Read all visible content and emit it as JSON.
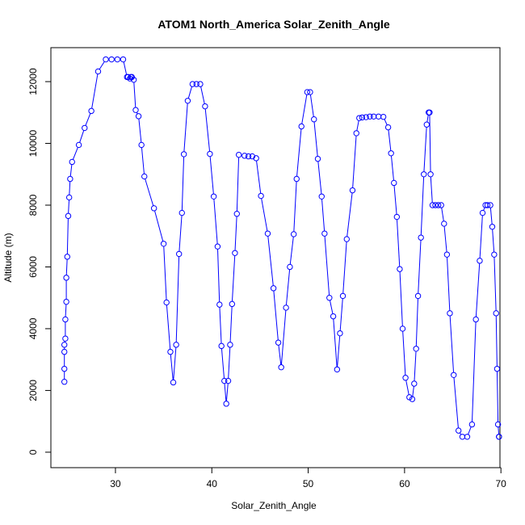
{
  "chart_data": {
    "type": "line",
    "title": "ATOM1 North_America Solar_Zenith_Angle",
    "xlabel": "Solar_Zenith_Angle",
    "ylabel": "Altitude (m)",
    "xlim": [
      23.3,
      69.9
    ],
    "ylim": [
      -500,
      13100
    ],
    "x_ticks": [
      "30",
      "40",
      "50",
      "60",
      "70"
    ],
    "x_tick_values": [
      30,
      40,
      50,
      60,
      70
    ],
    "y_ticks": [
      "0",
      "2000",
      "4000",
      "6000",
      "8000",
      "10000",
      "12000"
    ],
    "y_tick_values": [
      0,
      2000,
      4000,
      6000,
      8000,
      10000,
      12000
    ],
    "series_color": "#0000ff",
    "marker": "open-circle",
    "x": [
      24.7,
      24.7,
      24.7,
      24.7,
      24.8,
      24.8,
      24.9,
      24.9,
      25.0,
      25.1,
      25.2,
      25.3,
      25.5,
      26.2,
      26.8,
      27.5,
      28.2,
      29.0,
      29.6,
      30.2,
      30.8,
      31.2,
      31.3,
      31.5,
      31.6,
      31.7,
      31.9,
      32.1,
      32.4,
      32.7,
      33.0,
      34.0,
      35.0,
      35.3,
      35.7,
      36.0,
      36.3,
      36.6,
      36.9,
      37.1,
      37.5,
      38.0,
      38.4,
      38.8,
      39.3,
      39.8,
      40.2,
      40.6,
      40.8,
      41.0,
      41.3,
      41.5,
      41.7,
      41.9,
      42.1,
      42.4,
      42.6,
      42.8,
      43.4,
      43.8,
      44.2,
      44.6,
      45.1,
      45.8,
      46.4,
      46.9,
      47.2,
      47.7,
      48.1,
      48.5,
      48.8,
      49.3,
      49.9,
      50.2,
      50.6,
      51.0,
      51.4,
      51.7,
      52.2,
      52.6,
      53.0,
      53.3,
      53.6,
      54.0,
      54.6,
      55.0,
      55.3,
      55.6,
      56.0,
      56.4,
      56.8,
      57.3,
      57.8,
      58.3,
      58.6,
      58.9,
      59.2,
      59.5,
      59.8,
      60.1,
      60.5,
      60.8,
      61.0,
      61.2,
      61.4,
      61.7,
      62.0,
      62.3,
      62.5,
      62.6,
      62.7,
      62.9,
      63.2,
      63.5,
      63.8,
      64.1,
      64.4,
      64.7,
      65.1,
      65.6,
      66.0,
      66.5,
      67.0,
      67.4,
      67.8,
      68.1,
      68.4,
      68.6,
      68.9,
      69.1,
      69.3,
      69.5,
      69.6,
      69.7,
      69.8,
      69.8
    ],
    "y": [
      2280,
      2700,
      3250,
      3480,
      3680,
      4300,
      4870,
      5650,
      6330,
      7650,
      8250,
      8850,
      9400,
      9950,
      10500,
      11050,
      12330,
      12720,
      12720,
      12720,
      12720,
      12150,
      12150,
      12100,
      12150,
      12150,
      12060,
      11080,
      10880,
      9950,
      8930,
      7900,
      6750,
      4850,
      3250,
      2260,
      3480,
      6420,
      7750,
      9650,
      11380,
      11920,
      11920,
      11920,
      11200,
      9660,
      8280,
      6660,
      4780,
      3440,
      2310,
      1570,
      2310,
      3480,
      4800,
      6450,
      7720,
      9630,
      9600,
      9580,
      9580,
      9520,
      8300,
      7080,
      5310,
      3550,
      2750,
      4680,
      6000,
      7060,
      8850,
      10550,
      11660,
      11660,
      10780,
      9500,
      8280,
      7080,
      5000,
      4400,
      2680,
      3850,
      5060,
      6900,
      8480,
      10330,
      10820,
      10840,
      10850,
      10870,
      10870,
      10870,
      10860,
      10520,
      9680,
      8720,
      7620,
      5930,
      4000,
      2410,
      1780,
      1720,
      2220,
      3350,
      5060,
      6950,
      9000,
      10610,
      11000,
      11000,
      9000,
      8000,
      8000,
      8000,
      8000,
      7400,
      6400,
      4500,
      2500,
      700,
      500,
      500,
      900,
      4300,
      6200,
      7750,
      8000,
      8000,
      8000,
      7300,
      6400,
      4500,
      2700,
      900,
      500,
      500
    ],
    "annotation": ""
  }
}
